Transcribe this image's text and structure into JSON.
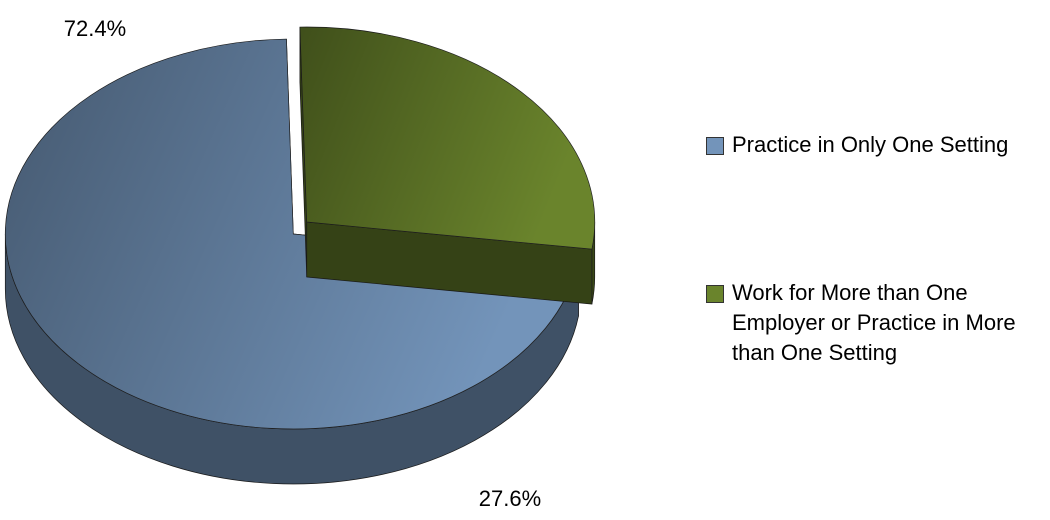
{
  "chart_data": {
    "type": "pie",
    "categories": [
      "Practice in Only One Setting",
      "Work for More than One Employer or Practice in More than One Setting"
    ],
    "values": [
      72.4,
      27.6
    ],
    "value_labels": [
      "72.4%",
      "27.6%"
    ],
    "colors": [
      "#7394ba",
      "#6a842c"
    ]
  }
}
